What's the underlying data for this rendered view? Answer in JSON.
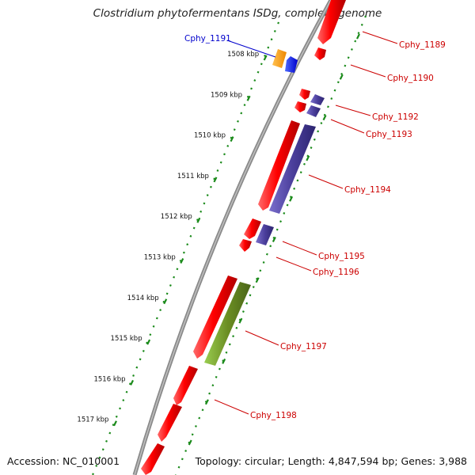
{
  "title": "Clostridium phytofermentans ISDg, complete genome",
  "accession": "Accession: NC_010001",
  "topology": "Topology: circular; Length: 4,847,594 bp; Genes: 3,988",
  "colors": {
    "forward_gene": "#ff0000",
    "reverse_gene": "#4b3f9c",
    "highlight_gene": "#0000ff",
    "rna_gene": "#ff9900",
    "other_gene": "#6b8e23",
    "backbone": "#8a8a8a",
    "tick": "#1a8a1a",
    "label_gene": "#cc0000",
    "label_highlight": "#0000cc"
  },
  "scale_labels": [
    "1508 kbp",
    "1509 kbp",
    "1510 kbp",
    "1511 kbp",
    "1512 kbp",
    "1513 kbp",
    "1514 kbp",
    "1515 kbp",
    "1516 kbp",
    "1517 kbp"
  ],
  "gene_labels": [
    "Cphy_1189",
    "Cphy_1190",
    "Cphy_1191",
    "Cphy_1192",
    "Cphy_1193",
    "Cphy_1194",
    "Cphy_1195",
    "Cphy_1196",
    "Cphy_1197",
    "Cphy_1198"
  ]
}
